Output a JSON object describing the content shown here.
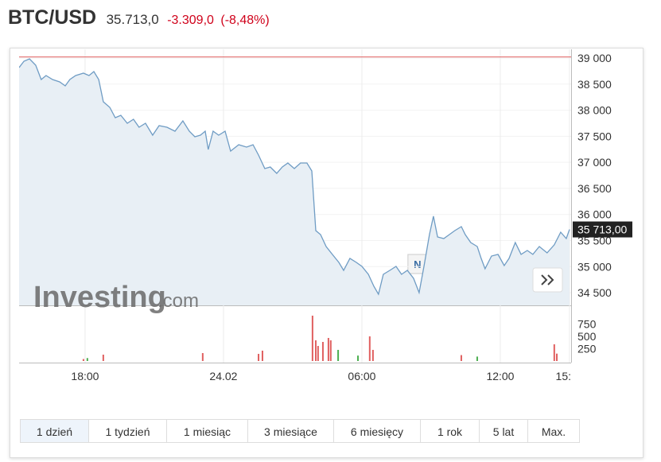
{
  "header": {
    "title": "BTC/USD",
    "price": "35.713,0",
    "change": "-3.309,0",
    "change_pct": "(-8,48%)"
  },
  "watermark": {
    "brand": "Investing",
    "suffix": ".com"
  },
  "range_buttons": {
    "labels": [
      "1 dzień",
      "1 tydzień",
      "1 miesiąc",
      "3 miesiące",
      "6 miesięcy",
      "1 rok",
      "5 lat",
      "Max."
    ],
    "active": 0
  },
  "chart_data": [
    {
      "type": "line",
      "xlim": [
        15.14,
        39.07
      ],
      "xticks": [
        {
          "value": 18,
          "label": "18:00"
        },
        {
          "value": 24,
          "label": "24.02"
        },
        {
          "value": 30,
          "label": "06:00"
        },
        {
          "value": 36,
          "label": "12:00"
        },
        {
          "value": 39,
          "label": "15:"
        }
      ],
      "ylim": [
        34257,
        39168
      ],
      "yticks": [
        {
          "value": 34500,
          "label": "34 500"
        },
        {
          "value": 35000,
          "label": "35 000"
        },
        {
          "value": 35500,
          "label": "35 500"
        },
        {
          "value": 36000,
          "label": "36 000"
        },
        {
          "value": 36500,
          "label": "36 500"
        },
        {
          "value": 37000,
          "label": "37 000"
        },
        {
          "value": 37500,
          "label": "37 500"
        },
        {
          "value": 38000,
          "label": "38 000"
        },
        {
          "value": 38500,
          "label": "38 500"
        },
        {
          "value": 39000,
          "label": "39 000"
        }
      ],
      "grid": true,
      "reference_line": 39022,
      "reference_color": "#e06060",
      "last_label": {
        "value": 35713,
        "label": "35 713,00"
      },
      "annotation": {
        "text": "N",
        "x": 32.41,
        "y": 35050
      },
      "series": [
        {
          "color": "#6f9cc4",
          "fill": "#e8eff5",
          "x": [
            15.14,
            15.35,
            15.59,
            15.86,
            16.1,
            16.31,
            16.59,
            16.9,
            17.14,
            17.34,
            17.59,
            17.93,
            18.17,
            18.38,
            18.59,
            18.79,
            19.07,
            19.31,
            19.55,
            19.83,
            20.1,
            20.34,
            20.62,
            20.93,
            21.21,
            21.55,
            21.9,
            22.24,
            22.52,
            22.76,
            23.0,
            23.21,
            23.34,
            23.55,
            23.79,
            24.07,
            24.31,
            24.66,
            25.0,
            25.28,
            25.52,
            25.79,
            26.03,
            26.31,
            26.55,
            26.79,
            27.07,
            27.34,
            27.62,
            27.83,
            28.0,
            28.21,
            28.45,
            28.72,
            29.0,
            29.21,
            29.48,
            29.76,
            30.0,
            30.28,
            30.52,
            30.72,
            30.93,
            31.21,
            31.48,
            31.72,
            31.97,
            32.24,
            32.48,
            32.69,
            32.93,
            33.1,
            33.28,
            33.55,
            33.79,
            34.03,
            34.31,
            34.48,
            34.72,
            35.0,
            35.17,
            35.34,
            35.62,
            35.9,
            36.17,
            36.38,
            36.65,
            36.9,
            37.17,
            37.41,
            37.69,
            38.03,
            38.34,
            38.62,
            38.86,
            39.0
          ],
          "values": [
            38817,
            38939,
            38985,
            38863,
            38588,
            38664,
            38588,
            38543,
            38466,
            38588,
            38664,
            38710,
            38664,
            38741,
            38588,
            38161,
            38055,
            37856,
            37902,
            37750,
            37826,
            37673,
            37750,
            37521,
            37704,
            37673,
            37597,
            37795,
            37597,
            37490,
            37521,
            37597,
            37246,
            37597,
            37521,
            37597,
            37216,
            37338,
            37292,
            37338,
            37140,
            36880,
            36911,
            36789,
            36911,
            36987,
            36880,
            36987,
            36987,
            36835,
            35691,
            35615,
            35386,
            35234,
            35081,
            34928,
            35158,
            35081,
            35005,
            34852,
            34623,
            34470,
            34852,
            34928,
            35005,
            34852,
            34928,
            34775,
            34501,
            35005,
            35615,
            35966,
            35569,
            35538,
            35615,
            35691,
            35767,
            35615,
            35462,
            35386,
            35158,
            34958,
            35203,
            35234,
            35020,
            35158,
            35462,
            35234,
            35310,
            35234,
            35386,
            35264,
            35417,
            35660,
            35538,
            35713
          ]
        }
      ]
    },
    {
      "type": "bar",
      "xlim": [
        15.14,
        39.07
      ],
      "ylim": [
        0,
        1113
      ],
      "yticks": [
        250,
        500,
        750
      ],
      "x": [
        17.93,
        18.1,
        18.79,
        23.1,
        25.52,
        25.69,
        27.86,
        28.0,
        28.1,
        28.31,
        28.55,
        28.65,
        28.97,
        29.83,
        30.34,
        30.48,
        34.31,
        35.0,
        38.34,
        38.45
      ],
      "values": [
        40,
        60,
        129,
        161,
        145,
        210,
        920,
        420,
        306,
        387,
        468,
        420,
        226,
        110,
        500,
        226,
        120,
        90,
        339,
        150
      ],
      "colors": [
        "#e06060",
        "#4caf50",
        "#e06060",
        "#e06060",
        "#e06060",
        "#e06060",
        "#e06060",
        "#e06060",
        "#e06060",
        "#e06060",
        "#e06060",
        "#e06060",
        "#4caf50",
        "#4caf50",
        "#e06060",
        "#e06060",
        "#e06060",
        "#4caf50",
        "#e06060",
        "#e06060"
      ]
    }
  ]
}
